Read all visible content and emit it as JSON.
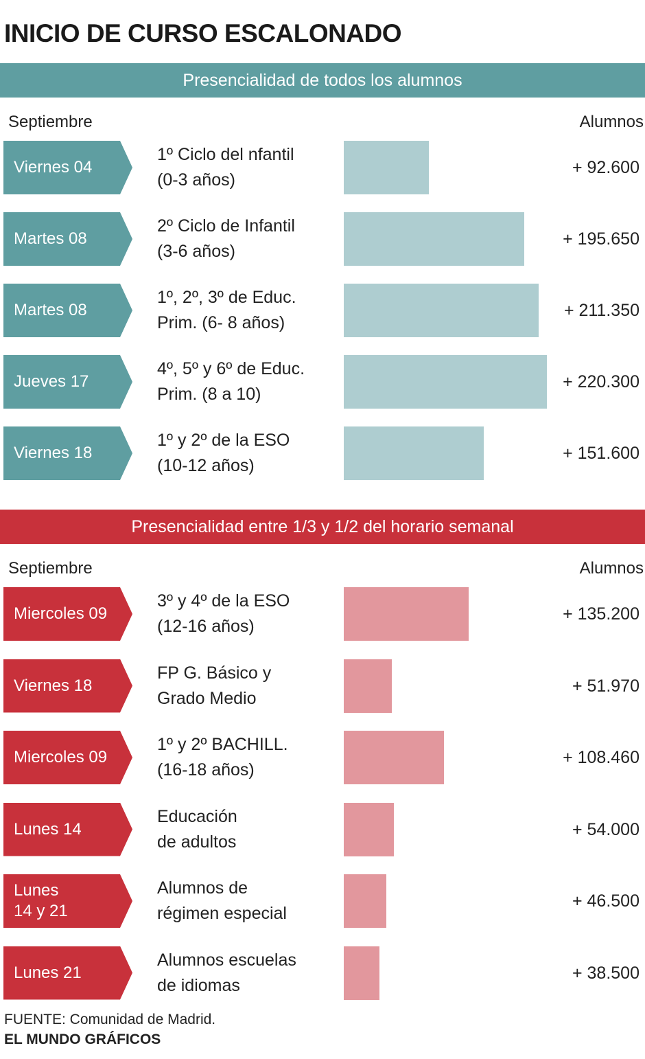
{
  "title": "INICIO DE CURSO ESCALONADO",
  "chart_data": [
    {
      "type": "bar",
      "title": "Presencialidad de todos los alumnos",
      "category_header": "Septiembre",
      "value_header": "Alumnos",
      "color": "#5f9ea1",
      "bar_color": "#aecdd0",
      "dates": [
        "Viernes 04",
        "Martes 08",
        "Martes 08",
        "Jueves 17",
        "Viernes 18"
      ],
      "categories": [
        "1º Ciclo del nfantil\n(0-3 años)",
        "2º Ciclo de Infantil\n(3-6 años)",
        "1º, 2º, 3º de Educ.\nPrim. (6- 8 años)",
        "4º, 5º y 6º de Educ.\nPrim. (8 a 10)",
        "1º y 2º de la ESO\n(10-12 años)"
      ],
      "values": [
        92600,
        195650,
        211350,
        220300,
        151600
      ],
      "value_labels": [
        "+ 92.600",
        "+ 195.650",
        "+ 211.350",
        "+ 220.300",
        "+ 151.600"
      ]
    },
    {
      "type": "bar",
      "title": "Presencialidad entre 1/3 y 1/2 del horario semanal",
      "category_header": "Septiembre",
      "value_header": "Alumnos",
      "color": "#c8313b",
      "bar_color": "#e2979d",
      "dates": [
        "Miercoles 09",
        "Viernes 18",
        "Miercoles 09",
        "Lunes 14",
        "Lunes\n14 y 21",
        "Lunes 21"
      ],
      "categories": [
        "3º y 4º de la ESO\n(12-16 años)",
        "FP G. Básico y\nGrado Medio",
        "1º y 2º BACHILL.\n(16-18 años)",
        "Educación\nde adultos",
        "Alumnos de\nrégimen especial",
        "Alumnos escuelas\nde idiomas"
      ],
      "values": [
        135200,
        51970,
        108460,
        54000,
        46500,
        38500
      ],
      "value_labels": [
        "+ 135.200",
        "+ 51.970",
        "+ 108.460",
        "+ 54.000",
        "+ 46.500",
        "+ 38.500"
      ]
    }
  ],
  "source": "FUENTE: Comunidad de Madrid.",
  "credit": "EL MUNDO GRÁFICOS"
}
